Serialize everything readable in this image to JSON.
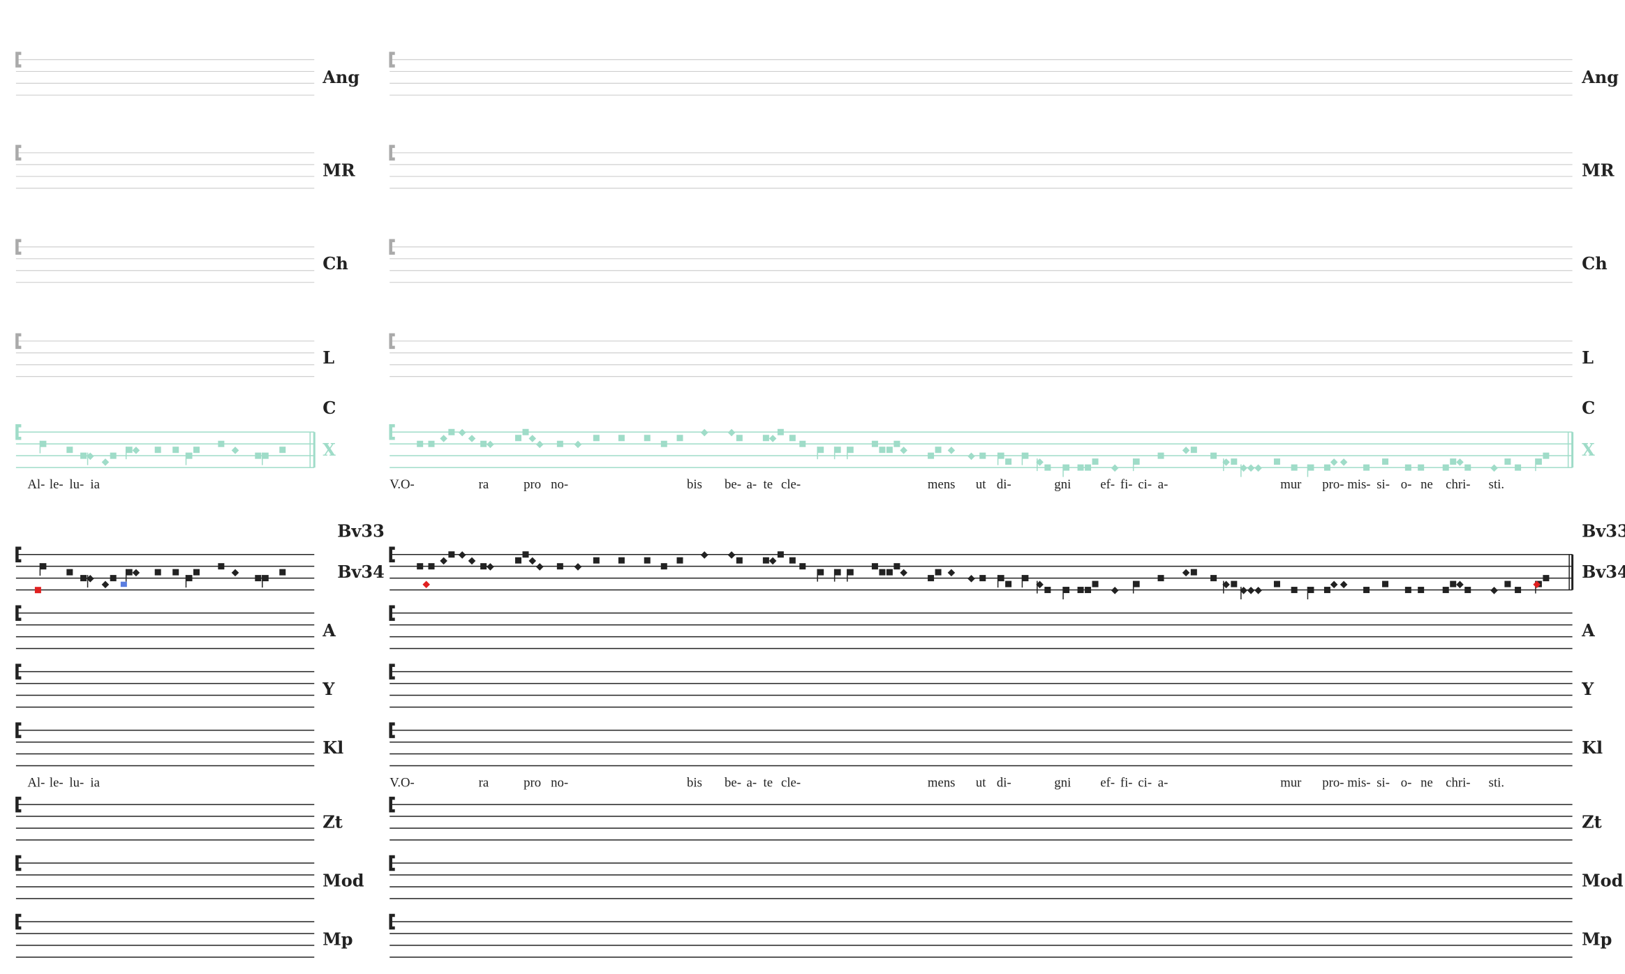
{
  "staff_labels": [
    "Ang",
    "MR",
    "Ch",
    "L",
    "C",
    "X",
    "Bv33",
    "Bv34",
    "A",
    "Y",
    "Kl",
    "Zt",
    "Mod",
    "Mp"
  ],
  "lyrics": {
    "left": [
      "Al-",
      "le-",
      "lu-",
      "ia"
    ],
    "right": [
      "V.O-",
      "ra",
      "pro",
      "no-",
      "bis",
      "be-",
      "a-",
      "te",
      "cle-",
      "mens",
      "ut",
      "di-",
      "gni",
      "ef-",
      "fi-",
      "ci-",
      "a-",
      "mur",
      "pro-",
      "mis-",
      "si-",
      "o-",
      "ne",
      "chri-",
      "sti."
    ]
  }
}
